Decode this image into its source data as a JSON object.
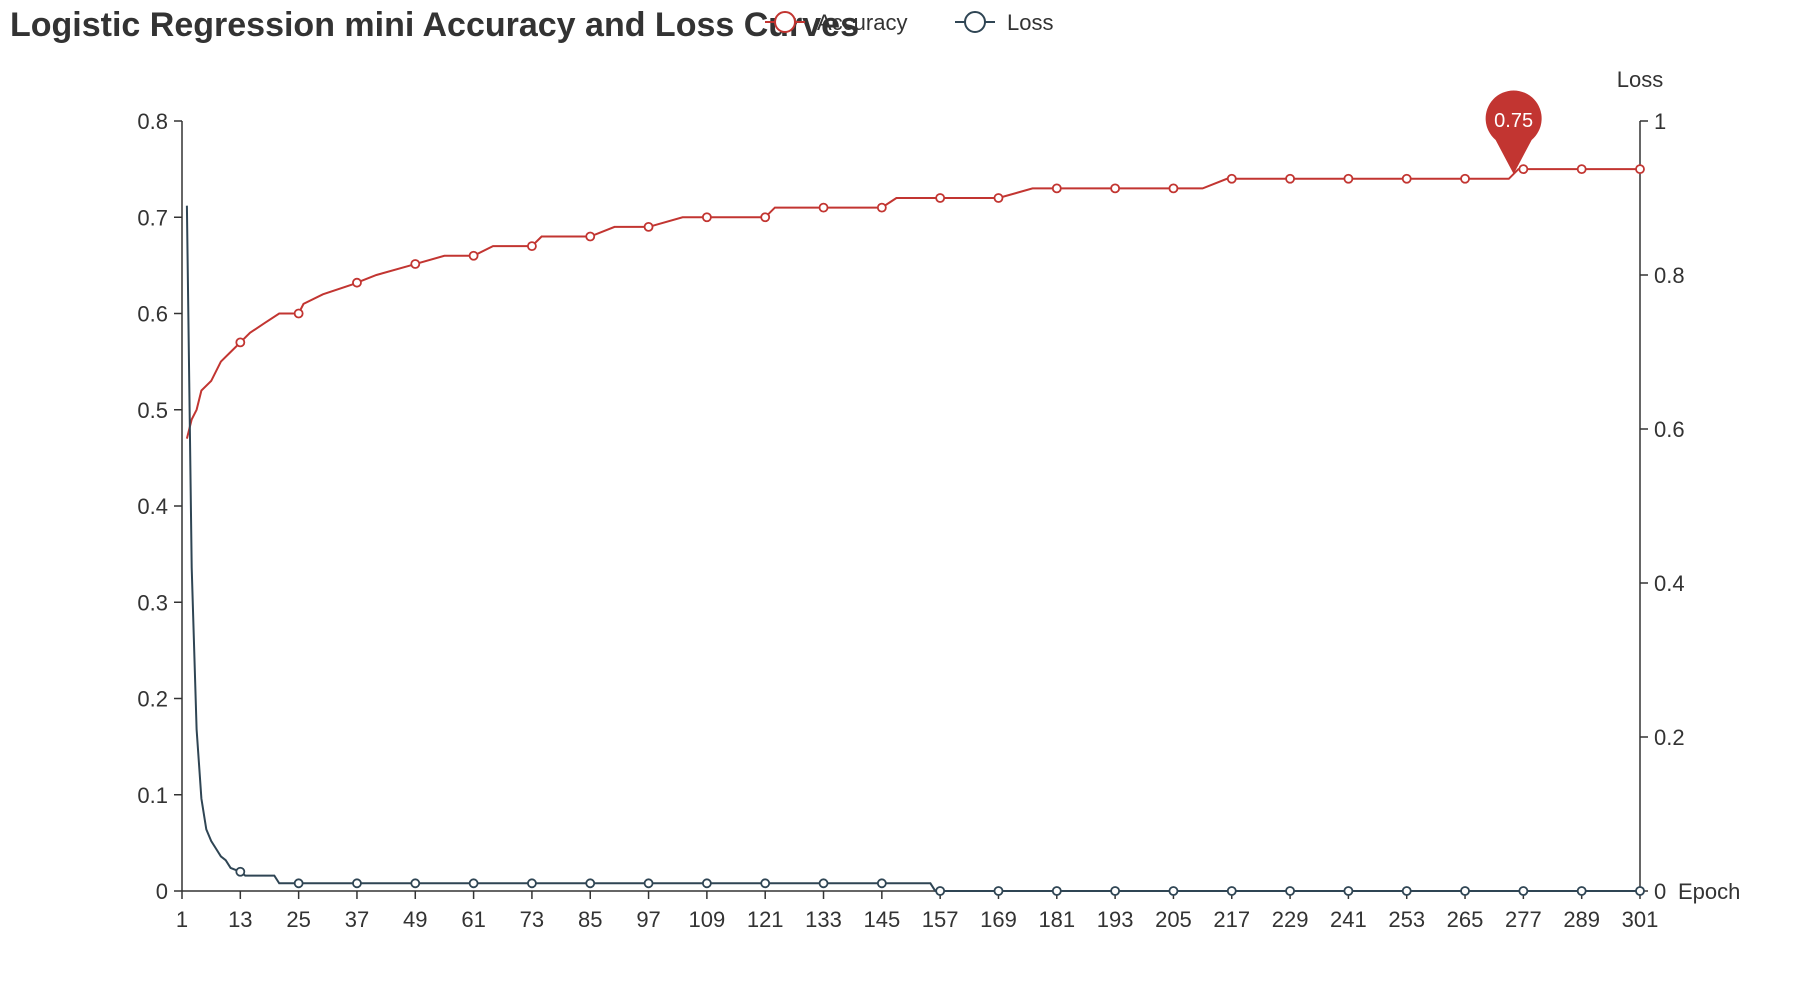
{
  "chart_data": {
    "type": "line",
    "title": "Logistic Regression mini Accuracy and Loss Curves",
    "xlabel": "Epoch",
    "ylabel_left": "",
    "ylabel_right": "Loss",
    "x_range": [
      1,
      301
    ],
    "x_ticks": [
      1,
      13,
      25,
      37,
      49,
      61,
      73,
      85,
      97,
      109,
      121,
      133,
      145,
      157,
      169,
      181,
      193,
      205,
      217,
      229,
      241,
      253,
      265,
      277,
      289,
      301
    ],
    "y_left": {
      "range": [
        0,
        0.8
      ],
      "ticks": [
        "0",
        "0.1",
        "0.2",
        "0.3",
        "0.4",
        "0.5",
        "0.6",
        "0.7",
        "0.8"
      ]
    },
    "y_right": {
      "range": [
        0,
        1
      ],
      "ticks": [
        "0",
        "0.2",
        "0.4",
        "0.6",
        "0.8",
        "1"
      ]
    },
    "legend_position": "top-center",
    "series": [
      {
        "name": "Accuracy",
        "axis": "left",
        "color": "#c23531",
        "marker_x": [
          13,
          25,
          37,
          49,
          61,
          73,
          85,
          97,
          109,
          121,
          133,
          145,
          157,
          169,
          181,
          193,
          205,
          217,
          229,
          241,
          253,
          265,
          277,
          289,
          301
        ],
        "points": [
          [
            2,
            0.47
          ],
          [
            3,
            0.49
          ],
          [
            4,
            0.5
          ],
          [
            5,
            0.52
          ],
          [
            7,
            0.53
          ],
          [
            9,
            0.55
          ],
          [
            11,
            0.56
          ],
          [
            13,
            0.57
          ],
          [
            15,
            0.58
          ],
          [
            18,
            0.59
          ],
          [
            21,
            0.6
          ],
          [
            25,
            0.6
          ],
          [
            26,
            0.61
          ],
          [
            30,
            0.62
          ],
          [
            36,
            0.63
          ],
          [
            41,
            0.64
          ],
          [
            48,
            0.65
          ],
          [
            55,
            0.66
          ],
          [
            61,
            0.66
          ],
          [
            65,
            0.67
          ],
          [
            73,
            0.67
          ],
          [
            75,
            0.68
          ],
          [
            85,
            0.68
          ],
          [
            90,
            0.69
          ],
          [
            97,
            0.69
          ],
          [
            104,
            0.7
          ],
          [
            121,
            0.7
          ],
          [
            123,
            0.71
          ],
          [
            145,
            0.71
          ],
          [
            148,
            0.72
          ],
          [
            169,
            0.72
          ],
          [
            176,
            0.73
          ],
          [
            211,
            0.73
          ],
          [
            216,
            0.74
          ],
          [
            274,
            0.74
          ],
          [
            276,
            0.75
          ],
          [
            301,
            0.75
          ]
        ],
        "max_label": {
          "x": 275,
          "value": "0.75"
        }
      },
      {
        "name": "Loss",
        "axis": "right",
        "color": "#2f4554",
        "marker_x": [
          13,
          25,
          37,
          49,
          61,
          73,
          85,
          97,
          109,
          121,
          133,
          145,
          157,
          169,
          181,
          193,
          205,
          217,
          229,
          241,
          253,
          265,
          277,
          289,
          301
        ],
        "points": [
          [
            2,
            0.89
          ],
          [
            3,
            0.42
          ],
          [
            4,
            0.21
          ],
          [
            5,
            0.12
          ],
          [
            6,
            0.08
          ],
          [
            7,
            0.065
          ],
          [
            8,
            0.055
          ],
          [
            9,
            0.045
          ],
          [
            10,
            0.04
          ],
          [
            11,
            0.03
          ],
          [
            13,
            0.025
          ],
          [
            14,
            0.02
          ],
          [
            20,
            0.02
          ],
          [
            21,
            0.01
          ],
          [
            155,
            0.01
          ],
          [
            156,
            0.0
          ],
          [
            301,
            0.0
          ]
        ]
      }
    ]
  }
}
